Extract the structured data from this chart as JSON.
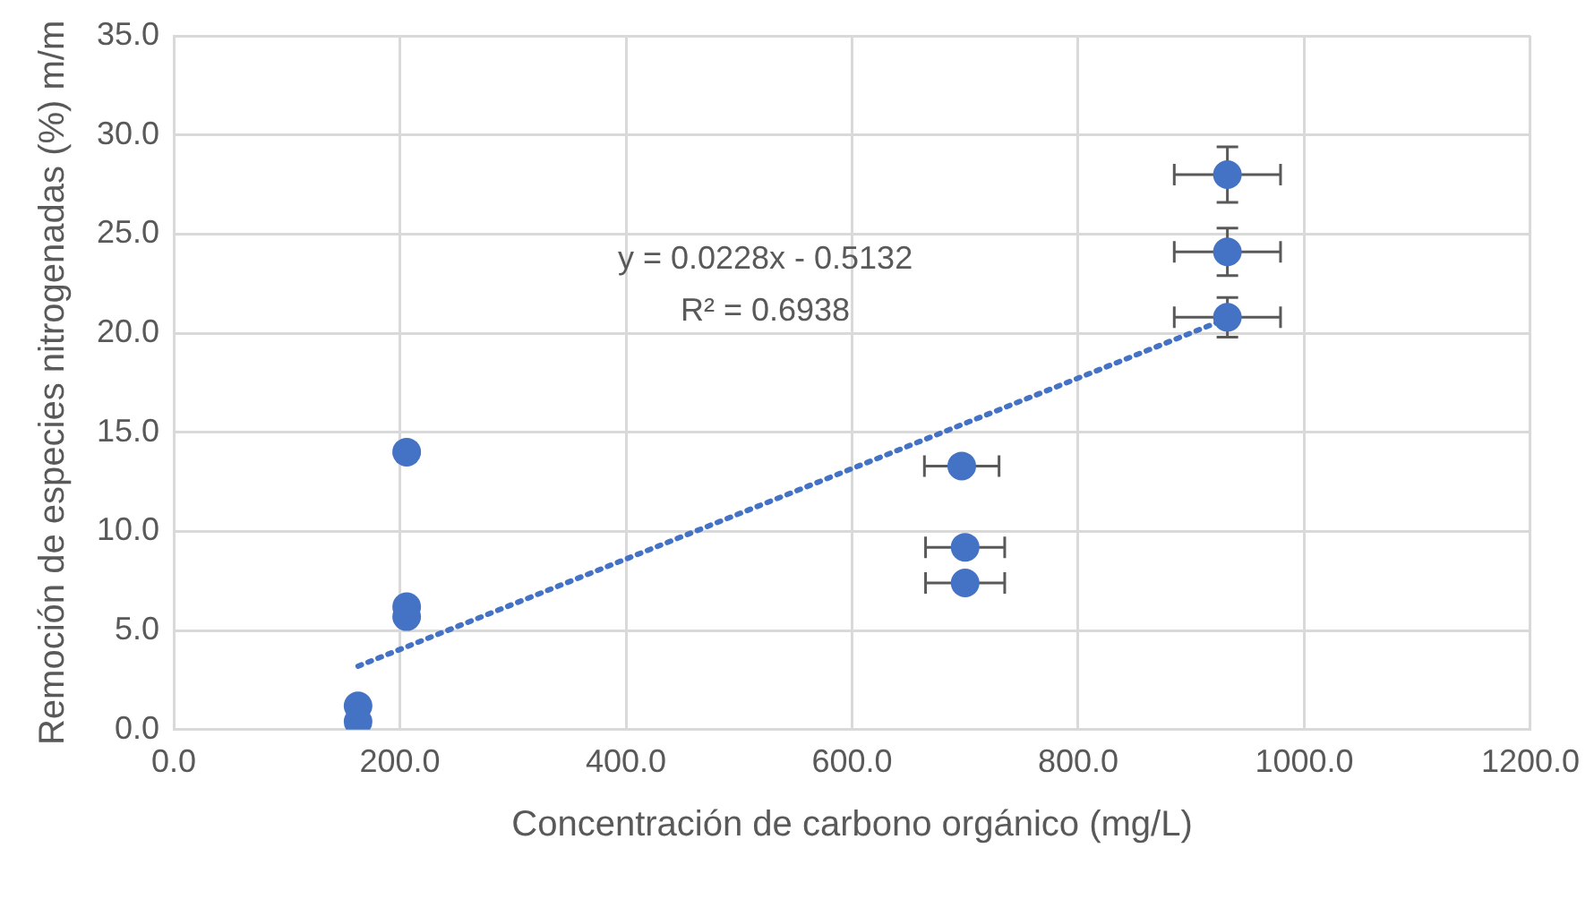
{
  "chart_data": {
    "type": "scatter",
    "xlabel": "Concentración de carbono orgánico (mg/L)",
    "ylabel": "Remoción de especies nitrogenadas (%) m/m",
    "xlim": [
      0,
      1200
    ],
    "xticks": [
      {
        "value": 0,
        "label": "0.0"
      },
      {
        "value": 200,
        "label": "200.0"
      },
      {
        "value": 400,
        "label": "400.0"
      },
      {
        "value": 600,
        "label": "600.0"
      },
      {
        "value": 800,
        "label": "800.0"
      },
      {
        "value": 1000,
        "label": "1000.0"
      },
      {
        "value": 1200,
        "label": "1200.0"
      }
    ],
    "ylim": [
      0,
      35
    ],
    "yticks": [
      {
        "value": 0,
        "label": "0.0"
      },
      {
        "value": 5,
        "label": "5.0"
      },
      {
        "value": 10,
        "label": "10.0"
      },
      {
        "value": 15,
        "label": "15.0"
      },
      {
        "value": 20,
        "label": "20.0"
      },
      {
        "value": 25,
        "label": "25.0"
      },
      {
        "value": 30,
        "label": "30.0"
      },
      {
        "value": 35,
        "label": "35.0"
      }
    ],
    "grid": true,
    "legend": false,
    "marker": "circle",
    "series": [
      {
        "color": "#4472c4",
        "x": [
          163,
          163,
          206,
          206,
          206,
          697,
          700,
          700,
          932,
          932,
          932
        ],
        "values": [
          1.2,
          0.4,
          14.0,
          6.2,
          5.7,
          13.3,
          9.2,
          7.4,
          28.0,
          24.1,
          20.8
        ],
        "errors": [
          null,
          null,
          null,
          null,
          null,
          null,
          null,
          null,
          1.4,
          1.2,
          1.0
        ],
        "xerrors": [
          null,
          null,
          null,
          null,
          null,
          33,
          35,
          35,
          47,
          47,
          47
        ]
      },
      {
        "type": "line",
        "color": "#4472c4",
        "line_style": "dotted",
        "marker": "none",
        "x": [
          163,
          930
        ],
        "values": [
          3.2,
          20.7
        ]
      }
    ],
    "annotations": [
      "y = 0.0228x - 0.5132",
      "R² = 0.6938"
    ]
  }
}
